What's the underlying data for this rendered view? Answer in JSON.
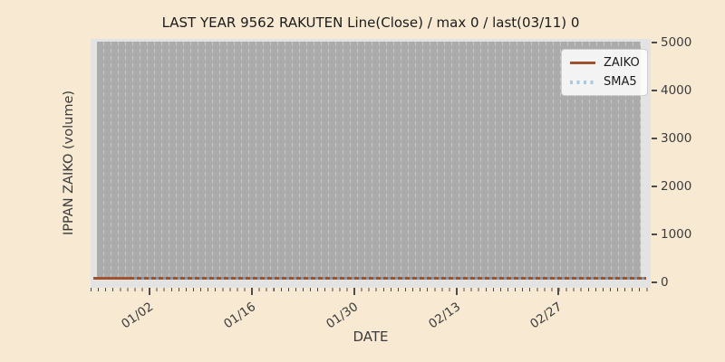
{
  "figure": {
    "background_color": "#f8e9d3",
    "plot_background_color": "#ababab",
    "frame_color": "#e3e3e3"
  },
  "chart_data": {
    "type": "line",
    "title": "LAST YEAR 9562 RAKUTEN Line(Close) / max 0 / last(03/11) 0",
    "xlabel": "DATE",
    "ylabel": "IPPAN ZAIKO (volume)",
    "x_tick_labels": [
      "01/02",
      "01/16",
      "01/30",
      "02/13",
      "02/27"
    ],
    "y_tick_labels": [
      "0",
      "1000",
      "2000",
      "3000",
      "4000",
      "5000"
    ],
    "ylim": [
      0,
      5000
    ],
    "grid": "vertical dashed daily gridlines on gray panel",
    "legend_position": "upper right",
    "max_value": 0,
    "last_date": "03/11",
    "last_value": 0,
    "series": [
      {
        "name": "ZAIKO",
        "color": "#a0522d",
        "line_style": "solid",
        "x": [
          "01/02",
          "01/16",
          "01/30",
          "02/13",
          "02/27",
          "03/11"
        ],
        "values": [
          0,
          0,
          0,
          0,
          0,
          0
        ]
      },
      {
        "name": "SMA5",
        "color": "#a9c7e3",
        "line_style": "dotted",
        "x": [
          "01/02",
          "01/16",
          "01/30",
          "02/13",
          "02/27",
          "03/11"
        ],
        "values": [
          0,
          0,
          0,
          0,
          0,
          0
        ]
      }
    ]
  }
}
